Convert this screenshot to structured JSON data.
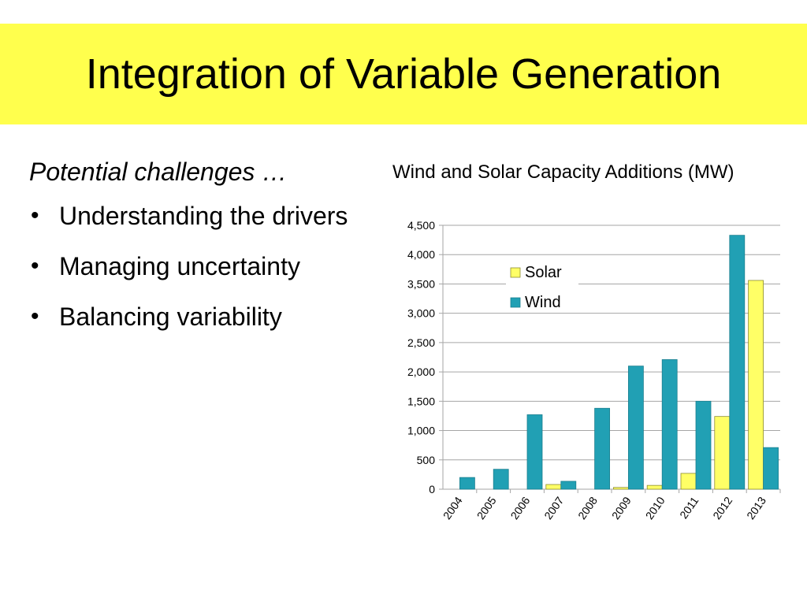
{
  "slide": {
    "title": "Integration of Variable Generation",
    "subtitle": "Potential challenges …",
    "bullets": [
      "Understanding the drivers",
      "Managing uncertainty",
      "Balancing variability"
    ]
  },
  "colors": {
    "title_band": "#ffff4d",
    "solar": "#ffff66",
    "wind": "#21a0b4",
    "grid": "#a6a6a6"
  },
  "chart_data": {
    "type": "bar",
    "title": "Wind and Solar Capacity Additions (MW)",
    "xlabel": "",
    "ylabel": "",
    "categories": [
      "2004",
      "2005",
      "2006",
      "2007",
      "2008",
      "2009",
      "2010",
      "2011",
      "2012",
      "2013"
    ],
    "series": [
      {
        "name": "Solar",
        "values": [
          0,
          0,
          0,
          80,
          0,
          30,
          65,
          270,
          1240,
          3560
        ]
      },
      {
        "name": "Wind",
        "values": [
          200,
          340,
          1270,
          135,
          1380,
          2100,
          2210,
          1500,
          4330,
          710
        ]
      }
    ],
    "ylim": [
      0,
      4500
    ],
    "yticks": [
      "0",
      "500",
      "1,000",
      "1,500",
      "2,000",
      "2,500",
      "3,000",
      "3,500",
      "4,000",
      "4,500"
    ],
    "grid": true,
    "legend_position": "top-center"
  }
}
